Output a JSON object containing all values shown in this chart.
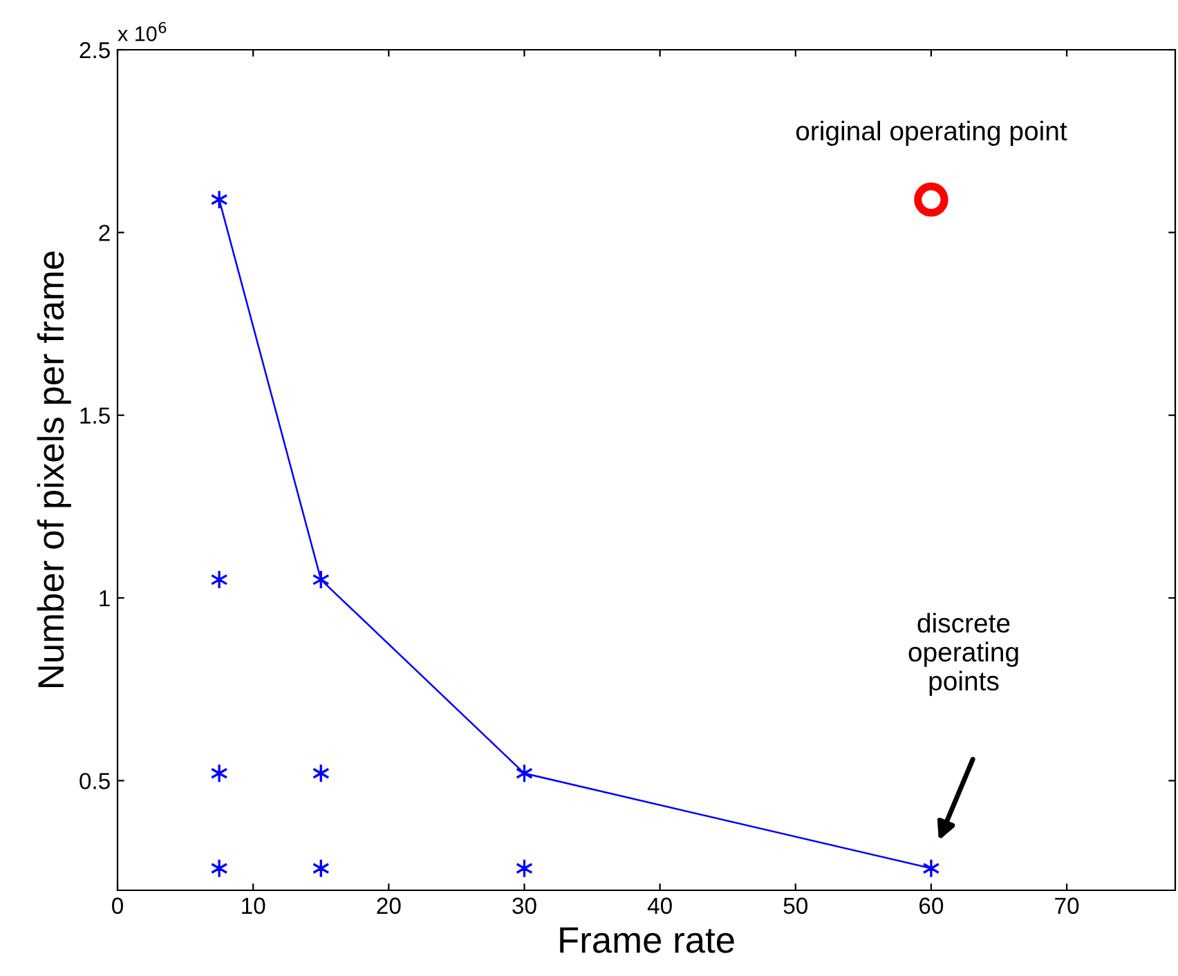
{
  "chart_data": {
    "type": "scatter",
    "xlabel": "Frame rate",
    "ylabel": "Number of pixels per frame",
    "xlim": [
      0,
      78
    ],
    "xticks": [
      0,
      10,
      20,
      30,
      40,
      50,
      60,
      70
    ],
    "ylim": [
      0.2,
      2.5
    ],
    "yticks": [
      0.5,
      1,
      1.5,
      2,
      2.5
    ],
    "grid": false,
    "legend": false,
    "series": [
      {
        "type": "line",
        "color": "#0000ff",
        "marker": "cross",
        "line_style": "solid",
        "x": [
          7.5,
          15,
          30,
          60
        ],
        "values": [
          2.09,
          1.05,
          0.52,
          0.26
        ]
      },
      {
        "color": "#0000ff",
        "marker": "cross",
        "x": [
          7.5,
          7.5,
          7.5,
          15,
          15,
          30
        ],
        "values": [
          1.05,
          0.52,
          0.26,
          0.52,
          0.26,
          0.26
        ]
      },
      {
        "color": "#ff0000",
        "marker": "circle",
        "x": [
          60
        ],
        "values": [
          2.09
        ]
      }
    ],
    "annotations": [
      "x 10$^{6}$",
      {
        "text": "original operating point",
        "x": 60,
        "y": 2.09
      },
      "discrete\noperating\npoints"
    ]
  }
}
